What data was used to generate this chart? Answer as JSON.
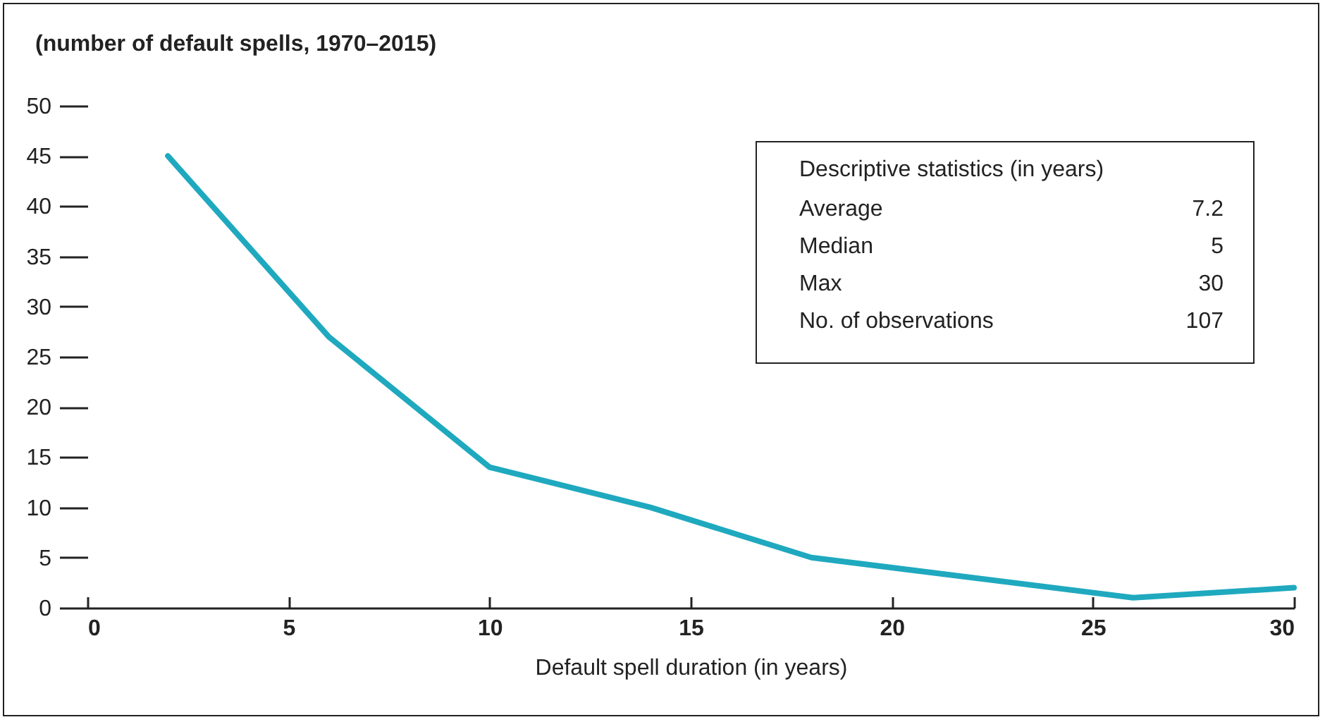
{
  "chart_data": {
    "type": "line",
    "title": "(number of default spells, 1970–2015)",
    "xlabel": "Default spell duration (in years)",
    "x": [
      2,
      6,
      10,
      14,
      18,
      22,
      26,
      30
    ],
    "series": [
      {
        "color": "#1fa9bf",
        "values": [
          45,
          27,
          14,
          10,
          5,
          3,
          1,
          2
        ]
      }
    ],
    "xlim": [
      0,
      30
    ],
    "xticks": [
      0,
      5,
      10,
      15,
      20,
      25,
      30
    ],
    "ylim": [
      0,
      50
    ],
    "yticks": [
      0,
      5,
      10,
      15,
      20,
      25,
      30,
      35,
      40,
      45,
      50
    ],
    "grid": false,
    "legend": false,
    "marker": "none",
    "line_style": "solid",
    "annotations": [
      "Descriptive statistics (in years)",
      "Average",
      "7.2",
      "Median",
      "5",
      "Max",
      "30",
      "No. of observations",
      "107"
    ]
  }
}
